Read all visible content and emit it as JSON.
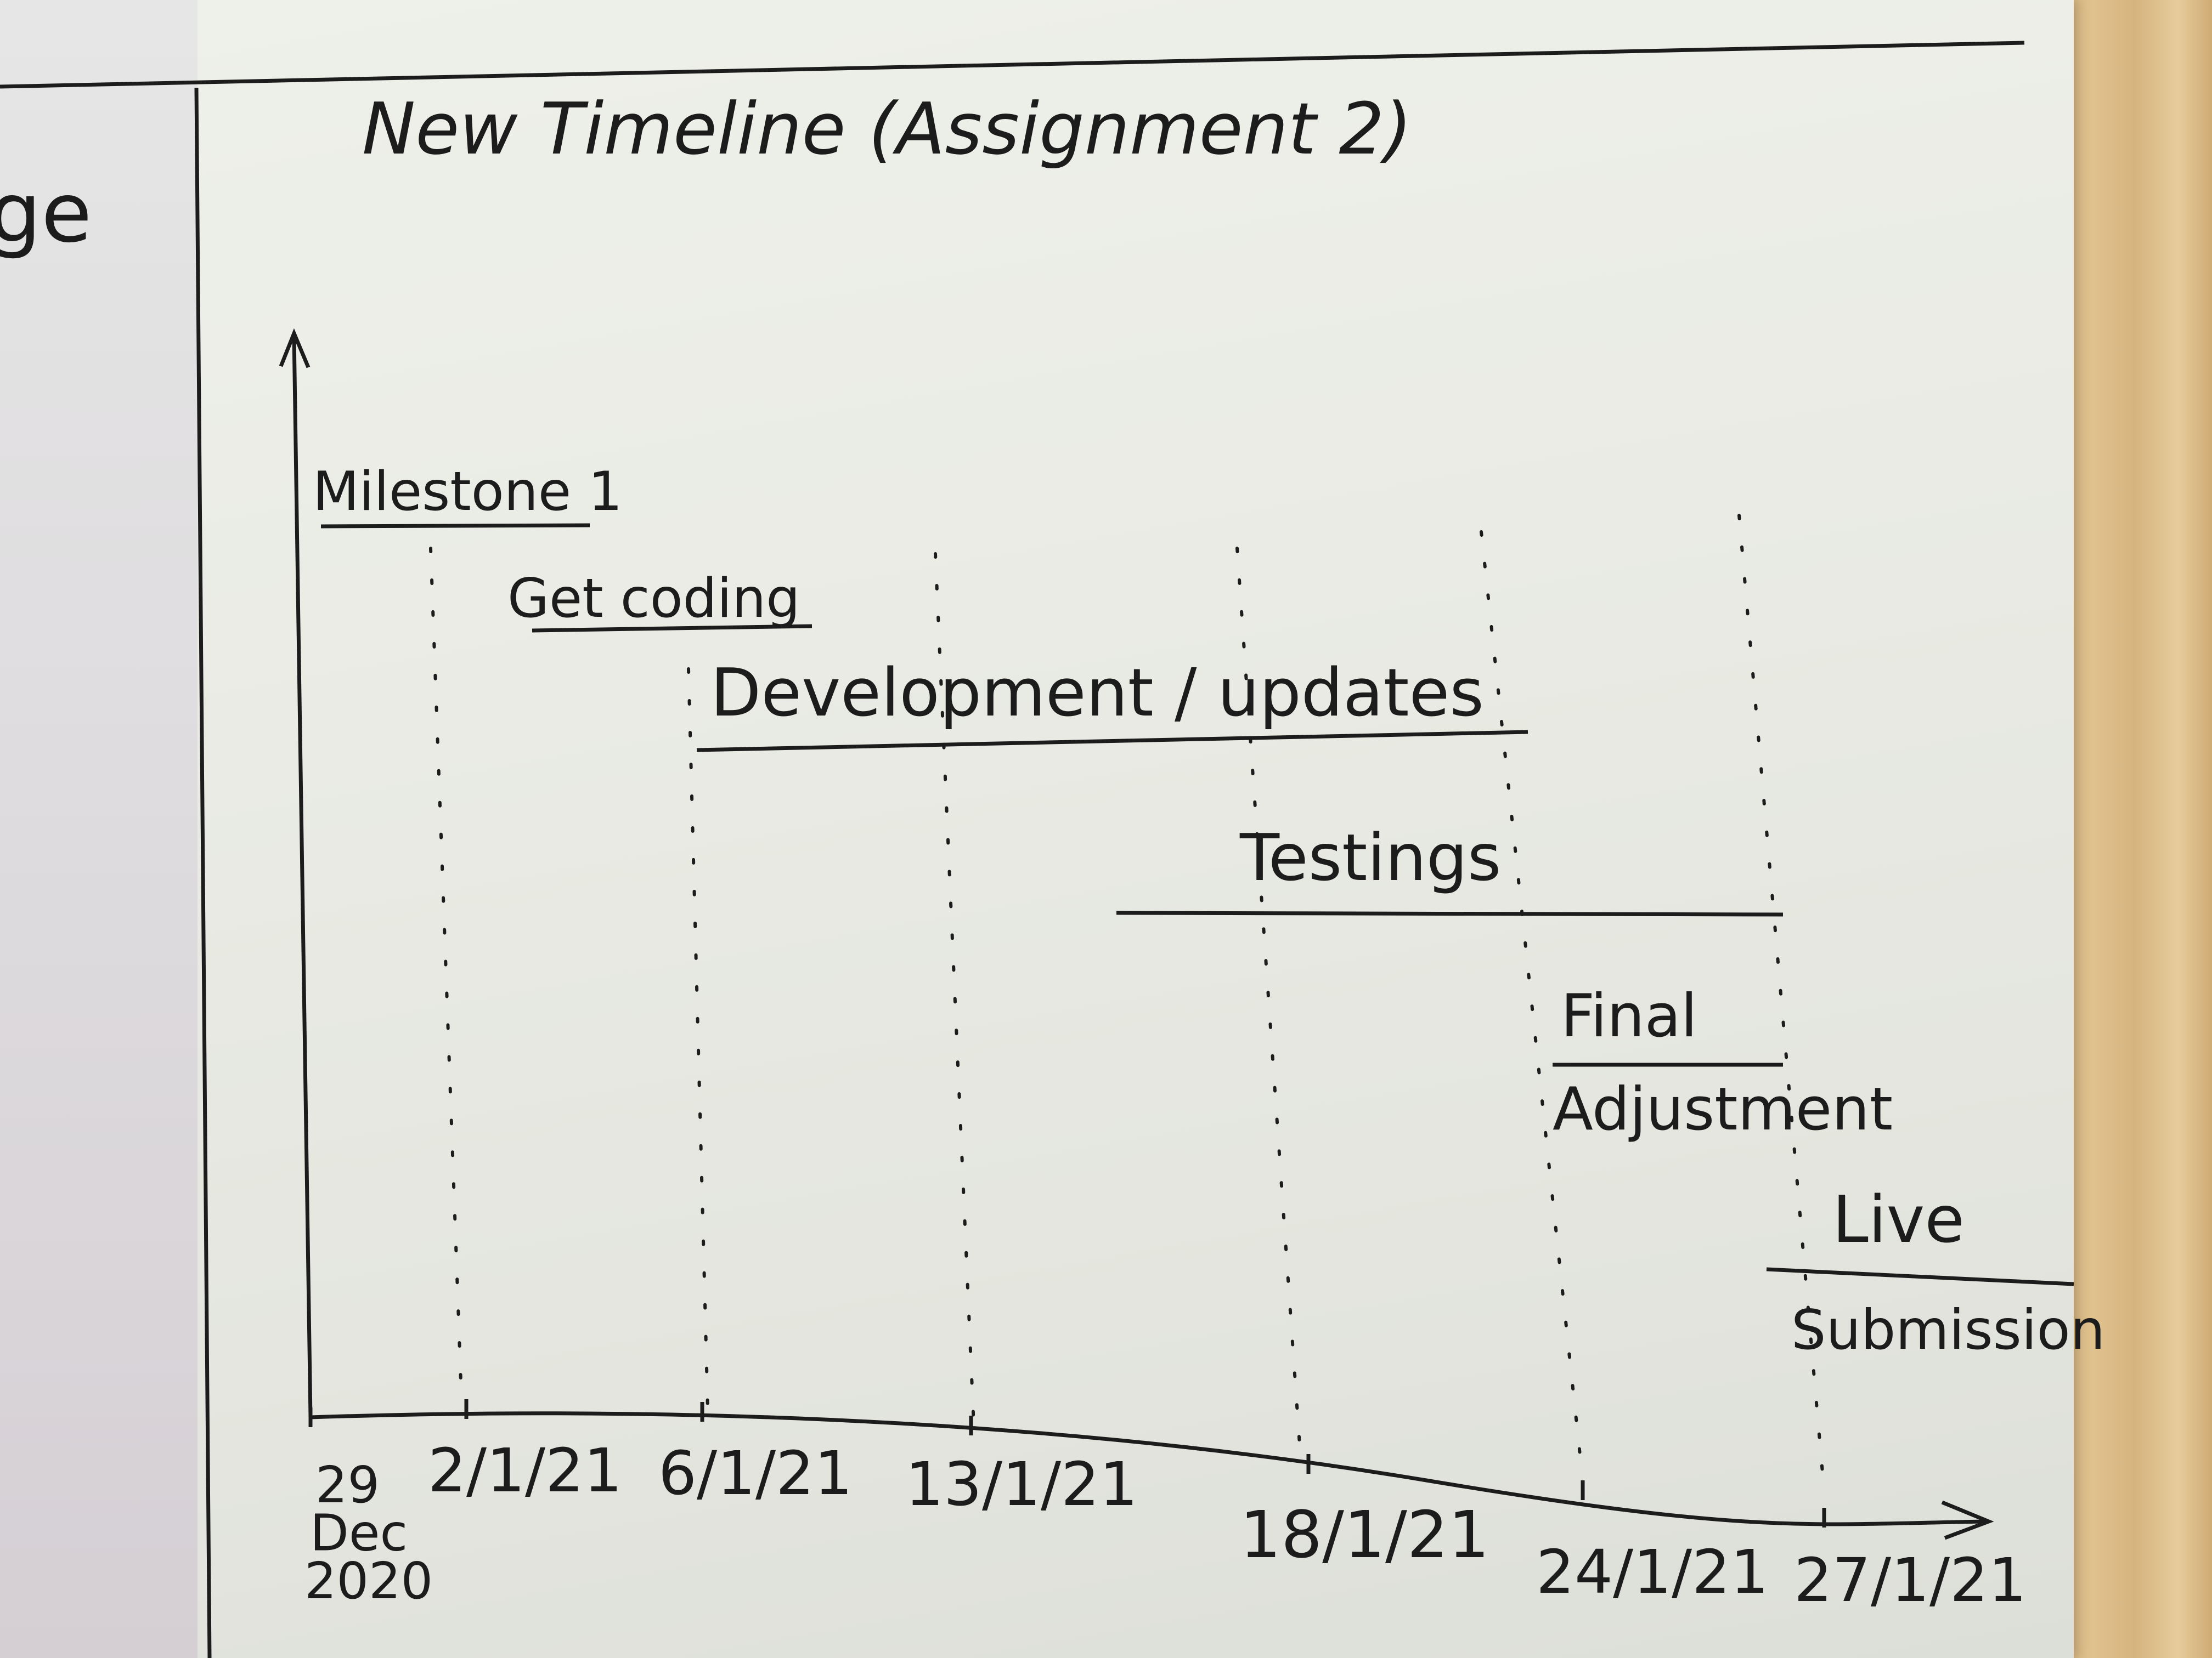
{
  "title": "New Timeline (Assignment 2)",
  "left_fragment": "ge",
  "phases": [
    {
      "label": "Milestone 1"
    },
    {
      "label": "Get coding"
    },
    {
      "label": "Development / updates"
    },
    {
      "label": "Testings"
    },
    {
      "label": "Final Adjustment"
    },
    {
      "label": "Live Submission"
    }
  ],
  "x_axis_ticks": [
    {
      "lines": [
        "29",
        "Dec",
        "2020"
      ]
    },
    {
      "lines": [
        "2/1/21"
      ]
    },
    {
      "lines": [
        "6/1/21"
      ]
    },
    {
      "lines": [
        "13/1/21"
      ]
    },
    {
      "lines": [
        "18/1/21"
      ]
    },
    {
      "lines": [
        "24/1/21"
      ]
    },
    {
      "lines": [
        "27/1/21"
      ]
    }
  ],
  "colors": {
    "ink": "#1c1c1c",
    "paper": "#eceee8",
    "wood": "#d8b88a"
  }
}
